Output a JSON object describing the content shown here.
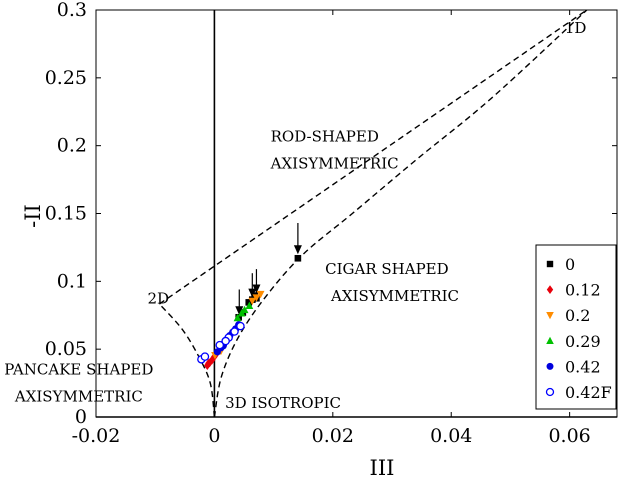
{
  "chart_data": {
    "type": "scatter",
    "xlabel": "III",
    "ylabel": "-II",
    "xlim": [
      -0.02,
      0.068
    ],
    "ylim": [
      0,
      0.3
    ],
    "xticks": [
      "-0.02",
      "0",
      "0.02",
      "0.04",
      "0.06"
    ],
    "xtick_values": [
      -0.02,
      0,
      0.02,
      0.04,
      0.06
    ],
    "yticks": [
      "0",
      "0.05",
      "0.1",
      "0.15",
      "0.2",
      "0.25",
      "0.3"
    ],
    "ytick_values": [
      0,
      0.05,
      0.1,
      0.15,
      0.2,
      0.25,
      0.3
    ],
    "grid": false,
    "legend_position": "right",
    "annotations": [
      {
        "text": "1D",
        "x": 0.0592,
        "y": 0.283
      },
      {
        "text": "ROD-SHAPED",
        "x": 0.0095,
        "y": 0.203
      },
      {
        "text": "AXISYMMETRIC",
        "x": 0.0095,
        "y": 0.183
      },
      {
        "text": "CIGAR SHAPED",
        "x": 0.0187,
        "y": 0.1055
      },
      {
        "text": "AXISYMMETRIC",
        "x": 0.0197,
        "y": 0.0855
      },
      {
        "text": "2D",
        "x": -0.0113,
        "y": 0.0835
      },
      {
        "text": "PANCAKE SHAPED",
        "x": -0.0355,
        "y": 0.0315
      },
      {
        "text": "AXISYMMETRIC",
        "x": -0.0337,
        "y": 0.0115
      },
      {
        "text": "3D ISOTROPIC",
        "x": 0.0018,
        "y": 0.0065
      }
    ],
    "boundaries": [
      {
        "name": "1D-2D",
        "type": "line",
        "points": [
          [
            -0.0093,
            0.0833
          ],
          [
            0.0629,
            0.3
          ]
        ]
      },
      {
        "name": "3D-1D",
        "type": "curve",
        "points": [
          [
            0,
            0
          ],
          [
            0.0012,
            0.03
          ],
          [
            0.0042,
            0.06
          ],
          [
            0.0089,
            0.09
          ],
          [
            0.015,
            0.12
          ],
          [
            0.0233,
            0.15
          ],
          [
            0.0342,
            0.19
          ],
          [
            0.0468,
            0.235
          ],
          [
            0.0629,
            0.3
          ]
        ]
      },
      {
        "name": "3D-2D",
        "type": "curve",
        "points": [
          [
            0,
            0
          ],
          [
            -0.0007,
            0.025
          ],
          [
            -0.0027,
            0.045
          ],
          [
            -0.0055,
            0.065
          ],
          [
            -0.0093,
            0.0833
          ]
        ]
      }
    ],
    "arrows": [
      {
        "from": [
          0.0141,
          0.143
        ],
        "to": [
          0.0141,
          0.12
        ]
      },
      {
        "from": [
          0.0071,
          0.109
        ],
        "to": [
          0.0071,
          0.091
        ]
      },
      {
        "from": [
          0.0064,
          0.106
        ],
        "to": [
          0.0064,
          0.088
        ]
      },
      {
        "from": [
          0.0042,
          0.094
        ],
        "to": [
          0.0042,
          0.075
        ]
      }
    ],
    "series": [
      {
        "name": "0",
        "marker": "square",
        "color": "#000000",
        "x": [
          0.0141,
          0.0071,
          0.0064,
          0.0058,
          0.0068,
          0.0041,
          0.0048
        ],
        "y": [
          0.117,
          0.0875,
          0.0865,
          0.0845,
          0.0895,
          0.0735,
          0.077
        ]
      },
      {
        "name": "0.12",
        "marker": "diamond",
        "color": "#e8000b",
        "x": [
          -0.0012,
          -0.0008,
          -0.0004,
          0.0,
          0.0004,
          -0.001
        ],
        "y": [
          0.038,
          0.04,
          0.042,
          0.0445,
          0.047,
          0.0395
        ]
      },
      {
        "name": "0.2",
        "marker": "triangle-down",
        "color": "#ff8c00",
        "x": [
          0.0078,
          0.0071,
          0.0064,
          0.0011,
          0.0001
        ],
        "y": [
          0.0905,
          0.088,
          0.0855,
          0.0485,
          0.0455
        ]
      },
      {
        "name": "0.29",
        "marker": "triangle-up",
        "color": "#00c000",
        "x": [
          0.0059,
          0.0051,
          0.0046,
          0.0039
        ],
        "y": [
          0.082,
          0.079,
          0.0765,
          0.073
        ]
      },
      {
        "name": "0.42",
        "marker": "circle",
        "color": "#0000dd",
        "x": [
          0.0005,
          0.0011,
          0.0016,
          0.0021,
          0.0026,
          0.0031,
          0.0036,
          0.0041,
          0.0015
        ],
        "y": [
          0.048,
          0.051,
          0.054,
          0.057,
          0.06,
          0.0625,
          0.065,
          0.068,
          0.0525
        ]
      },
      {
        "name": "0.42F",
        "marker": "circle-open",
        "color": "#0000ff",
        "x": [
          -0.0022,
          -0.0016,
          0.0009,
          0.0024,
          0.0034,
          0.0044,
          0.0019
        ],
        "y": [
          0.0425,
          0.0445,
          0.053,
          0.0585,
          0.063,
          0.067,
          0.056
        ]
      }
    ]
  }
}
